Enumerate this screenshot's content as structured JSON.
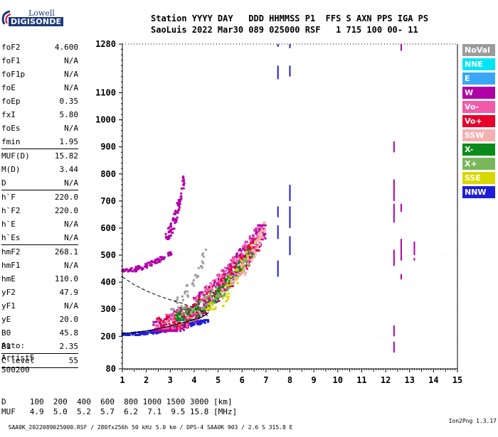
{
  "logo": {
    "line1": "Lowell",
    "line2": "DIGISONDE"
  },
  "header": {
    "row1": "Station YYYY DAY   DDD HHMMSS P1  FFS S AXN PPS IGA PS",
    "row2": "SaoLuis 2022 Mar30 089 025000 RSF   1 715 100 00- 11"
  },
  "params": [
    {
      "name": "foF2",
      "value": "4.600"
    },
    {
      "name": "foF1",
      "value": "N/A"
    },
    {
      "name": "foF1p",
      "value": "N/A"
    },
    {
      "name": "foE",
      "value": "N/A"
    },
    {
      "name": "foEp",
      "value": "0.35"
    },
    {
      "name": "fxI",
      "value": "5.80"
    },
    {
      "name": "foEs",
      "value": "N/A"
    },
    {
      "name": "fmin",
      "value": "1.95",
      "sep_after": true
    },
    {
      "name": "MUF(D)",
      "value": "15.82"
    },
    {
      "name": "M(D)",
      "value": "3.44"
    },
    {
      "name": "D",
      "value": "N/A",
      "sep_after": true
    },
    {
      "name": "h`F",
      "value": "220.0"
    },
    {
      "name": "h`F2",
      "value": "220.0"
    },
    {
      "name": "h`E",
      "value": "N/A"
    },
    {
      "name": "h`Es",
      "value": "N/A",
      "sep_after": true
    },
    {
      "name": "hmF2",
      "value": "268.1"
    },
    {
      "name": "hmF1",
      "value": "N/A"
    },
    {
      "name": "hmE",
      "value": "110.0"
    },
    {
      "name": "yF2",
      "value": "47.9"
    },
    {
      "name": "yF1",
      "value": "N/A"
    },
    {
      "name": "yE",
      "value": "20.0"
    },
    {
      "name": "B0",
      "value": "45.8"
    },
    {
      "name": "B1",
      "value": "2.35",
      "sep_after": true
    },
    {
      "name": "C-level",
      "value": "55",
      "sep_after": true
    }
  ],
  "auto": {
    "line1": "Auto:",
    "line2": "Artist5",
    "line3": "500200"
  },
  "legend": [
    {
      "label": "NoVal",
      "color": "#9c9c9c"
    },
    {
      "label": "NNE",
      "color": "#00e5f5"
    },
    {
      "label": "E",
      "color": "#3aa7f5"
    },
    {
      "label": "W",
      "color": "#b000a8"
    },
    {
      "label": "Vo-",
      "color": "#f05aa8"
    },
    {
      "label": "Vo+",
      "color": "#e8002a"
    },
    {
      "label": "SSW",
      "color": "#f5b0b0"
    },
    {
      "label": "X-",
      "color": "#0a8a1a"
    },
    {
      "label": "X+",
      "color": "#78b85a"
    },
    {
      "label": "SSE",
      "color": "#d8d800"
    },
    {
      "label": "NNW",
      "color": "#1e1ed8"
    }
  ],
  "muf": {
    "row1": "D     100  200  400  600  800 1000 1500 3000 [km]",
    "row2": "MUF   4.9  5.0  5.2  5.7  6.2  7.1  9.5 15.8 [MHz]"
  },
  "footer": {
    "left": "SAA0K_2022089025000.RSF / 280fx256h 50 kHz 5.0 km / DPS-4 SAA0K 903 / 2.6 S 315.8 E",
    "right": "Ion2Png 1.3.17"
  },
  "chart_data": {
    "type": "scatter",
    "title": "",
    "xlabel": "",
    "ylabel": "",
    "xlim": [
      1,
      15
    ],
    "ylim": [
      80,
      1280
    ],
    "xticks": [
      1,
      2,
      3,
      4,
      5,
      6,
      7,
      8,
      9,
      10,
      11,
      12,
      13,
      14,
      15
    ],
    "yticks": [
      80,
      200,
      300,
      400,
      500,
      600,
      700,
      800,
      900,
      1000,
      1100,
      1280
    ],
    "trace_curve": {
      "name": "",
      "color": "#000000",
      "x": [
        1.0,
        1.5,
        2.0,
        2.5,
        3.0,
        3.5,
        4.0,
        4.3,
        4.5,
        4.6
      ],
      "y": [
        210,
        214,
        220,
        228,
        238,
        250,
        262,
        270,
        280,
        288
      ]
    },
    "profile_curve": {
      "name": "",
      "color": "#000000",
      "dashed": true,
      "x": [
        1.0,
        1.5,
        2.0,
        2.5,
        3.0,
        3.5,
        4.0,
        4.4,
        4.6
      ],
      "y": [
        420,
        390,
        368,
        350,
        335,
        322,
        305,
        290,
        272
      ]
    },
    "clusters": [
      {
        "series": "NNW",
        "color": "#1e1ed8",
        "x": [
          1.0,
          4.6
        ],
        "y": [
          205,
          260
        ],
        "n": 180
      },
      {
        "series": "W",
        "color": "#b000a8",
        "x": [
          2.3,
          7.0
        ],
        "y": [
          220,
          610
        ],
        "n": 420
      },
      {
        "series": "Vo+",
        "color": "#e8002a",
        "x": [
          2.5,
          6.8
        ],
        "y": [
          230,
          560
        ],
        "n": 260
      },
      {
        "series": "Vo-",
        "color": "#f05aa8",
        "x": [
          2.4,
          6.9
        ],
        "y": [
          230,
          600
        ],
        "n": 200
      },
      {
        "series": "X-",
        "color": "#0a8a1a",
        "x": [
          3.2,
          6.5
        ],
        "y": [
          260,
          520
        ],
        "n": 120
      },
      {
        "series": "X+",
        "color": "#78b85a",
        "x": [
          3.5,
          6.5
        ],
        "y": [
          280,
          520
        ],
        "n": 60
      },
      {
        "series": "SSE",
        "color": "#d8d800",
        "x": [
          4.5,
          6.8
        ],
        "y": [
          300,
          600
        ],
        "n": 50
      },
      {
        "series": "SSW",
        "color": "#f5b0b0",
        "x": [
          5.5,
          7.0
        ],
        "y": [
          400,
          620
        ],
        "n": 60
      },
      {
        "series": "W",
        "color": "#b000a8",
        "x": [
          2.8,
          3.6
        ],
        "y": [
          560,
          790
        ],
        "n": 80
      },
      {
        "series": "W",
        "color": "#b000a8",
        "x": [
          1.0,
          3.1
        ],
        "y": [
          440,
          510
        ],
        "n": 90
      },
      {
        "series": "NoVal",
        "color": "#9c9c9c",
        "x": [
          3.0,
          4.5
        ],
        "y": [
          300,
          520
        ],
        "n": 40
      }
    ],
    "vertical_segments": [
      {
        "series": "NNW",
        "color": "#1e1ed8",
        "x": 7.5,
        "y": [
          [
            1270,
            1280
          ],
          [
            1150,
            1200
          ],
          [
            640,
            680
          ],
          [
            560,
            610
          ],
          [
            420,
            480
          ]
        ]
      },
      {
        "series": "NNW",
        "color": "#1e1ed8",
        "x": 8.0,
        "y": [
          [
            1265,
            1280
          ],
          [
            1160,
            1200
          ],
          [
            700,
            760
          ],
          [
            600,
            680
          ],
          [
            500,
            570
          ]
        ]
      },
      {
        "series": "W",
        "color": "#b000a8",
        "x": 12.35,
        "y": [
          [
            880,
            920
          ],
          [
            700,
            780
          ],
          [
            620,
            690
          ],
          [
            460,
            520
          ],
          [
            200,
            240
          ],
          [
            140,
            180
          ]
        ]
      },
      {
        "series": "W",
        "color": "#b000a8",
        "x": 12.65,
        "y": [
          [
            1255,
            1280
          ],
          [
            660,
            690
          ],
          [
            480,
            560
          ],
          [
            410,
            430
          ]
        ]
      },
      {
        "series": "W",
        "color": "#b000a8",
        "x": 13.2,
        "y": [
          [
            500,
            550
          ],
          [
            480,
            490
          ]
        ]
      }
    ]
  }
}
